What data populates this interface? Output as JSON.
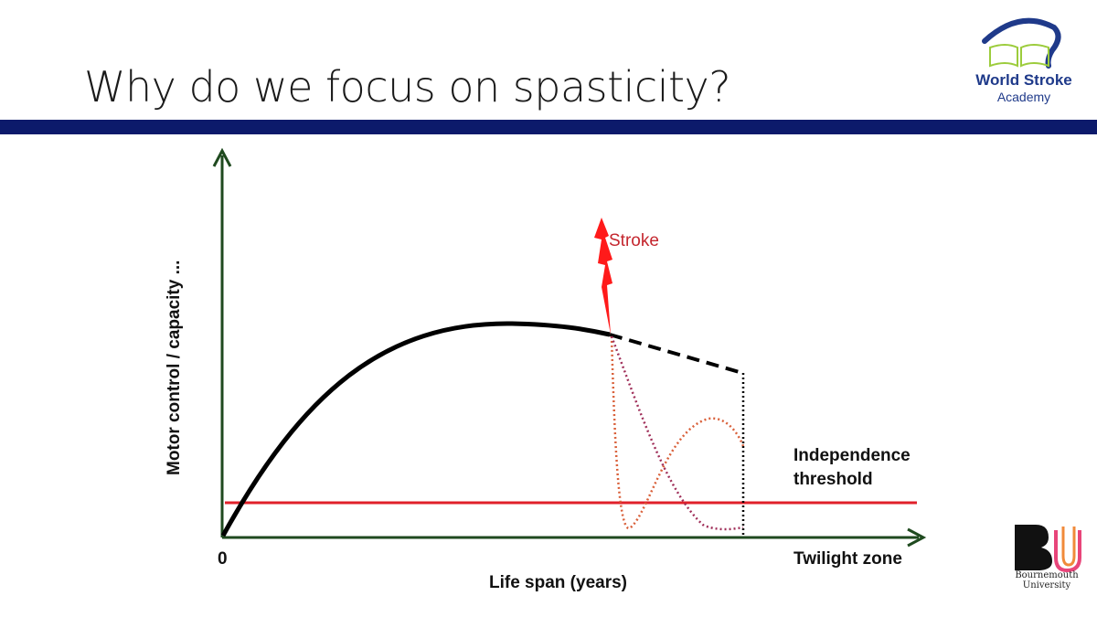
{
  "slide": {
    "title": "Why do we focus on spasticity?"
  },
  "logos": {
    "world_stroke": {
      "line1": "World Stroke",
      "line2": "Academy"
    },
    "bournemouth": {
      "line1": "Bournemouth",
      "line2": "University"
    }
  },
  "diagram": {
    "y_axis_label": "Motor control / capacity ...",
    "x_axis_label": "Life span (years)",
    "x_origin_label": "0",
    "x_end_label": "Twilight zone",
    "threshold_label_1": "Independence",
    "threshold_label_2": "threshold",
    "event_label": "Stroke",
    "colors": {
      "axes": "#1f4a1f",
      "threshold": "#e0202a",
      "curve": "#000000",
      "stroke_bolt": "#ff1a1a",
      "recovery_a": "#d9603a",
      "recovery_b": "#a0305a",
      "header_bar": "#0c1a6b"
    }
  }
}
